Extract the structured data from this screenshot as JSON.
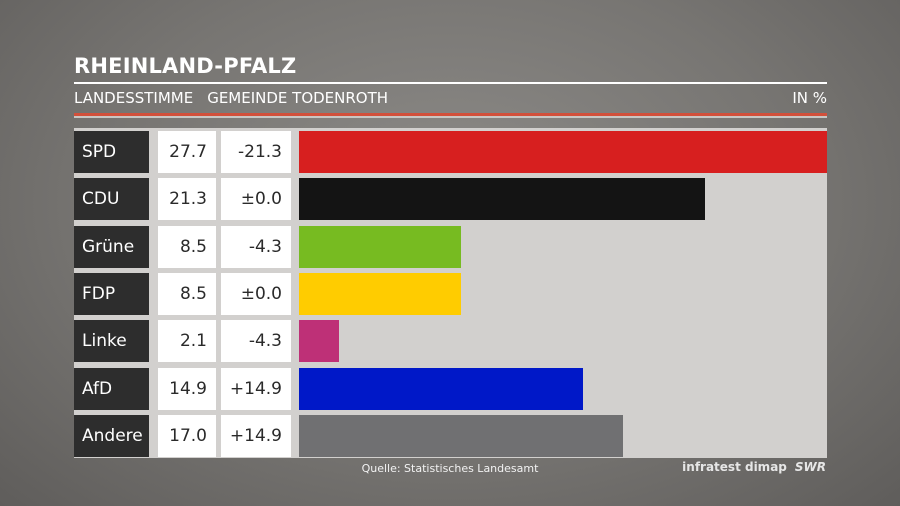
{
  "header": {
    "title": "RHEINLAND-PFALZ",
    "subtitle_left": "LANDESSTIMME",
    "subtitle_mid": "GEMEINDE TODENROTH",
    "unit": "IN %"
  },
  "footer": {
    "source": "Quelle: Statistisches Landesamt",
    "brand": "infratest dimap",
    "logo": "SWR"
  },
  "chart_data": {
    "type": "bar",
    "orientation": "horizontal",
    "title": "RHEINLAND-PFALZ",
    "xlim": [
      0,
      27.7
    ],
    "rows": [
      {
        "party": "SPD",
        "value": 27.7,
        "value_label": "27.7",
        "change": "-21.3",
        "color": "#d71f1f"
      },
      {
        "party": "CDU",
        "value": 21.3,
        "value_label": "21.3",
        "change": "±0.0",
        "color": "#141414"
      },
      {
        "party": "Grüne",
        "value": 8.5,
        "value_label": "8.5",
        "change": "-4.3",
        "color": "#77bb21"
      },
      {
        "party": "FDP",
        "value": 8.5,
        "value_label": "8.5",
        "change": "±0.0",
        "color": "#ffcc00"
      },
      {
        "party": "Linke",
        "value": 2.1,
        "value_label": "2.1",
        "change": "-4.3",
        "color": "#be3077"
      },
      {
        "party": "AfD",
        "value": 14.9,
        "value_label": "14.9",
        "change": "+14.9",
        "color": "#0018c8"
      },
      {
        "party": "Andere",
        "value": 17.0,
        "value_label": "17.0",
        "change": "+14.9",
        "color": "#707072"
      }
    ]
  }
}
